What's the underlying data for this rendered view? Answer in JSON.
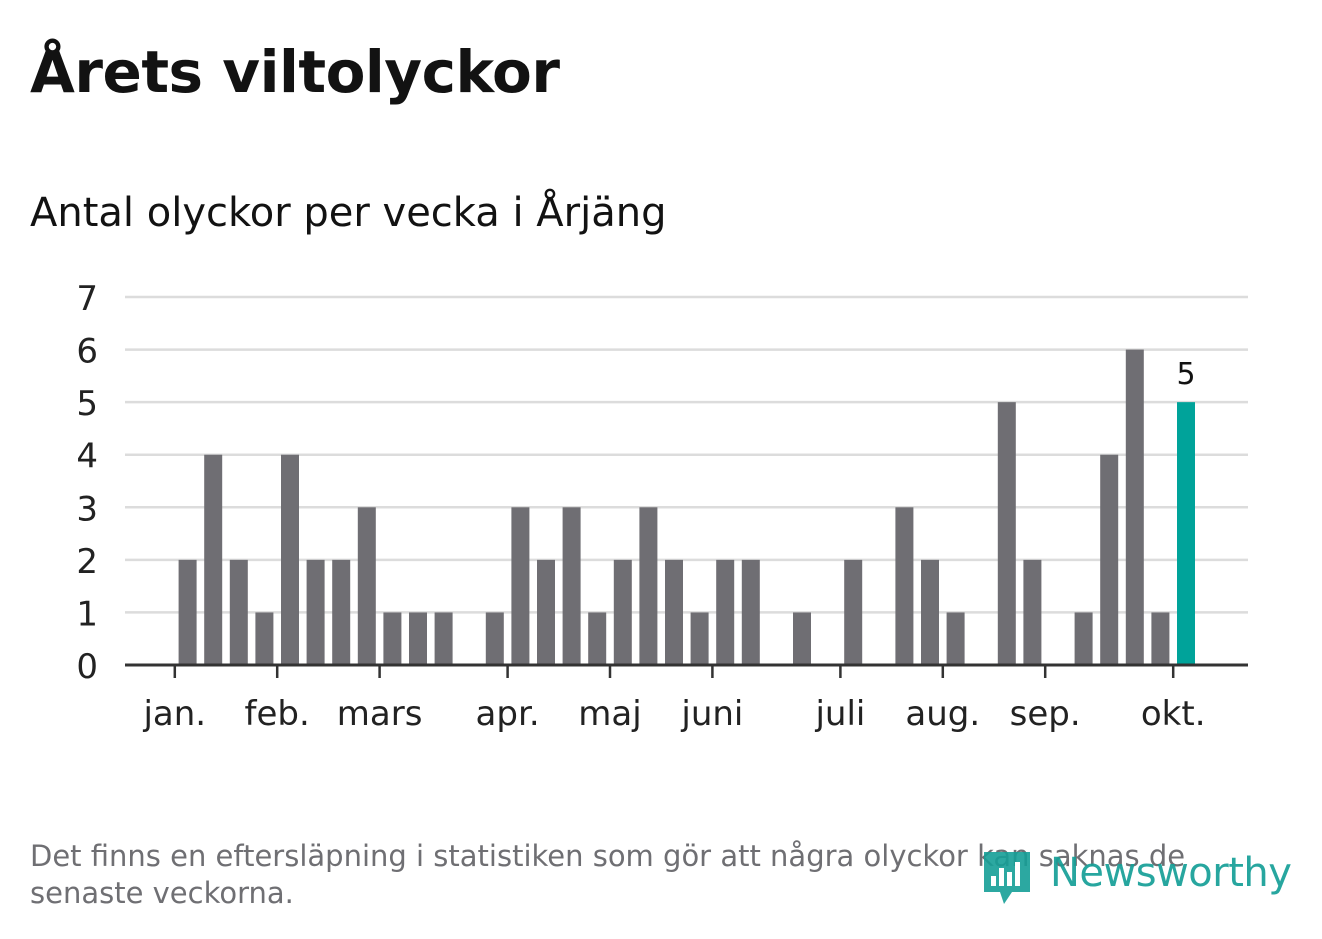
{
  "title": "Årets viltolyckor",
  "subtitle": "Antal olyckor per vecka i Årjäng",
  "note": "Det finns en eftersläpning i statistiken som gör att några olyckor kan saknas de senaste veckorna.",
  "logo": {
    "text": "Newsworthy",
    "icon": "newsworthy-logo-icon"
  },
  "colors": {
    "bar": "#6f6e73",
    "highlight": "#00a39a",
    "grid": "#dcdcdc",
    "axis": "#333333",
    "text": "#121212",
    "muted": "#6f6f73"
  },
  "chart_data": {
    "type": "bar",
    "ylim": [
      0,
      7
    ],
    "yticks": [
      "0",
      "1",
      "2",
      "3",
      "4",
      "5",
      "6",
      "7"
    ],
    "week_values": [
      0,
      2,
      4,
      2,
      1,
      4,
      2,
      2,
      3,
      1,
      1,
      1,
      0,
      1,
      3,
      2,
      3,
      1,
      2,
      3,
      2,
      1,
      2,
      2,
      0,
      1,
      0,
      2,
      0,
      3,
      2,
      1,
      0,
      5,
      2,
      0,
      1,
      4,
      6,
      1,
      5
    ],
    "highlight_index": 40,
    "highlight_label": "5",
    "month_ticks": [
      {
        "label": "jan.",
        "week_index": 0.5
      },
      {
        "label": "feb.",
        "week_index": 4.5
      },
      {
        "label": "mars",
        "week_index": 8.5
      },
      {
        "label": "apr.",
        "week_index": 13.5
      },
      {
        "label": "maj",
        "week_index": 17.5
      },
      {
        "label": "juni",
        "week_index": 21.5
      },
      {
        "label": "juli",
        "week_index": 26.5
      },
      {
        "label": "aug.",
        "week_index": 30.5
      },
      {
        "label": "sep.",
        "week_index": 34.5
      },
      {
        "label": "okt.",
        "week_index": 39.5
      }
    ],
    "grid": true
  }
}
